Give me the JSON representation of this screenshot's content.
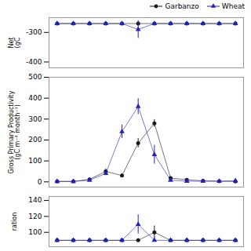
{
  "chart_data": [
    {
      "type": "line",
      "ylabel": "Net\n(gC",
      "x": [
        1,
        2,
        3,
        4,
        5,
        6,
        7,
        8,
        9,
        10,
        11,
        12
      ],
      "xlim": [
        0.5,
        12.5
      ],
      "ylim": [
        -420,
        -250
      ],
      "yticks": [
        -400,
        -300
      ],
      "tick_labels": "y",
      "grid": false,
      "legend": "upper right",
      "series": [
        {
          "name": "Garbanzo",
          "color": "#1a1a1a",
          "marker": "circle",
          "values": [
            -270,
            -270,
            -270,
            -270,
            -270,
            -270,
            -270,
            -270,
            -270,
            -270,
            -270,
            -270
          ],
          "error": [
            0,
            0,
            0,
            0,
            0,
            0,
            0,
            0,
            0,
            0,
            0,
            0
          ]
        },
        {
          "name": "Wheat",
          "color": "#2222bb",
          "marker": "triangle",
          "values": [
            -270,
            -270,
            -270,
            -270,
            -270,
            -290,
            -270,
            -270,
            -270,
            -270,
            -270,
            -270
          ],
          "error": [
            0,
            0,
            0,
            0,
            0,
            30,
            0,
            0,
            0,
            0,
            0,
            0
          ]
        }
      ]
    },
    {
      "type": "line",
      "ylabel": "Gross Primary Productivity\n(gC m⁻² month⁻¹)",
      "x": [
        1,
        2,
        3,
        4,
        5,
        6,
        7,
        8,
        9,
        10,
        11,
        12
      ],
      "xlim": [
        0.5,
        12.5
      ],
      "ylim": [
        -25,
        500
      ],
      "yticks": [
        0,
        100,
        200,
        300,
        400,
        500
      ],
      "tick_labels": "y",
      "grid": false,
      "series": [
        {
          "name": "Garbanzo",
          "color": "#1a1a1a",
          "marker": "circle",
          "values": [
            2,
            2,
            12,
            50,
            30,
            185,
            280,
            18,
            10,
            5,
            3,
            2
          ],
          "error": [
            1,
            1,
            4,
            12,
            8,
            22,
            18,
            5,
            3,
            2,
            1,
            1
          ]
        },
        {
          "name": "Wheat",
          "color": "#2222bb",
          "marker": "triangle",
          "values": [
            2,
            2,
            8,
            40,
            240,
            360,
            130,
            8,
            3,
            3,
            3,
            5
          ],
          "error": [
            1,
            1,
            3,
            10,
            32,
            38,
            45,
            3,
            1,
            1,
            1,
            2
          ]
        }
      ]
    },
    {
      "type": "line",
      "ylabel": "ration",
      "x": [
        1,
        2,
        3,
        4,
        5,
        6,
        7,
        8,
        9,
        10,
        11,
        12
      ],
      "xlim": [
        0.5,
        12.5
      ],
      "ylim": [
        82,
        145
      ],
      "yticks": [
        100,
        120,
        140
      ],
      "tick_labels": "y",
      "grid": false,
      "series": [
        {
          "name": "Garbanzo",
          "color": "#1a1a1a",
          "marker": "circle",
          "values": [
            90,
            90,
            90,
            90,
            90,
            90,
            100,
            90,
            90,
            90,
            90,
            90
          ],
          "error": [
            2,
            2,
            2,
            2,
            2,
            2,
            8,
            2,
            2,
            2,
            2,
            2
          ]
        },
        {
          "name": "Wheat",
          "color": "#2222bb",
          "marker": "triangle",
          "values": [
            90,
            90,
            90,
            90,
            90,
            110,
            90,
            90,
            90,
            90,
            90,
            90
          ],
          "error": [
            2,
            2,
            2,
            2,
            2,
            12,
            2,
            2,
            2,
            2,
            2,
            2
          ]
        }
      ]
    }
  ]
}
